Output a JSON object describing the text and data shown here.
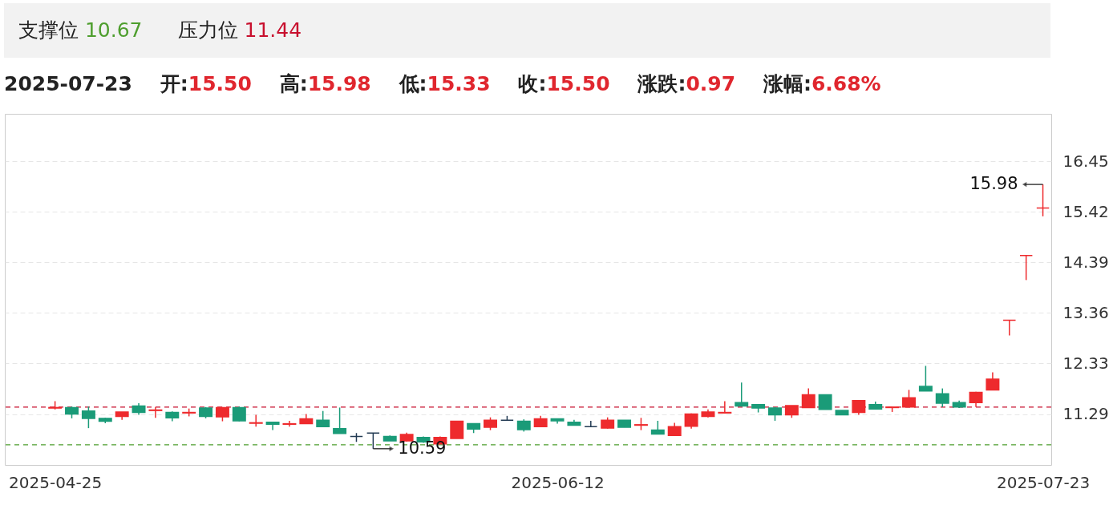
{
  "chart_data": {
    "type": "candlestick",
    "subtitle": "2025-07-23    开:15.50    高:15.98    低:15.33    收:15.50    涨跌:0.97    涨幅:6.68%",
    "categories": [
      "2025-04-25",
      null,
      null,
      null,
      null,
      null,
      null,
      null,
      null,
      null,
      null,
      null,
      null,
      null,
      null,
      null,
      null,
      null,
      null,
      null,
      null,
      null,
      null,
      null,
      null,
      null,
      null,
      null,
      null,
      null,
      "2025-06-12",
      null,
      null,
      null,
      null,
      null,
      null,
      null,
      null,
      null,
      null,
      null,
      null,
      null,
      null,
      null,
      null,
      null,
      null,
      null,
      null,
      null,
      null,
      null,
      null,
      null,
      null,
      null,
      null,
      "2025-07-23"
    ],
    "ohlc": [
      [
        11.42,
        11.56,
        11.39,
        11.43
      ],
      [
        11.43,
        11.45,
        11.21,
        11.3
      ],
      [
        11.36,
        11.45,
        11.01,
        11.21
      ],
      [
        11.21,
        11.22,
        11.11,
        11.15
      ],
      [
        11.25,
        11.34,
        11.18,
        11.34
      ],
      [
        11.46,
        11.52,
        11.28,
        11.33
      ],
      [
        11.37,
        11.44,
        11.22,
        11.38
      ],
      [
        11.33,
        11.35,
        11.15,
        11.22
      ],
      [
        11.32,
        11.41,
        11.25,
        11.33
      ],
      [
        11.42,
        11.44,
        11.21,
        11.25
      ],
      [
        11.24,
        11.44,
        11.15,
        11.43
      ],
      [
        11.43,
        11.45,
        11.15,
        11.16
      ],
      [
        11.11,
        11.28,
        11.04,
        11.12
      ],
      [
        11.13,
        11.13,
        10.97,
        11.09
      ],
      [
        11.09,
        11.16,
        11.04,
        11.1
      ],
      [
        11.1,
        11.3,
        11.1,
        11.2
      ],
      [
        11.17,
        11.36,
        11.04,
        11.04
      ],
      [
        11.0,
        11.43,
        10.9,
        10.9
      ],
      [
        10.84,
        10.91,
        10.73,
        10.84
      ],
      [
        10.91,
        10.91,
        10.59,
        10.91
      ],
      [
        10.84,
        10.86,
        10.75,
        10.75
      ],
      [
        10.75,
        10.92,
        10.74,
        10.88
      ],
      [
        10.82,
        10.84,
        10.71,
        10.73
      ],
      [
        10.69,
        10.84,
        10.68,
        10.82
      ],
      [
        10.8,
        11.16,
        10.8,
        11.15
      ],
      [
        11.1,
        11.1,
        10.91,
        10.99
      ],
      [
        11.03,
        11.23,
        10.97,
        11.17
      ],
      [
        11.17,
        11.26,
        11.17,
        11.17
      ],
      [
        11.15,
        11.19,
        10.94,
        10.98
      ],
      [
        11.04,
        11.26,
        11.03,
        11.2
      ],
      [
        11.2,
        11.21,
        11.1,
        11.16
      ],
      [
        11.13,
        11.18,
        11.06,
        11.07
      ],
      [
        11.04,
        11.16,
        11.04,
        11.04
      ],
      [
        11.01,
        11.23,
        11.0,
        11.17
      ],
      [
        11.17,
        11.17,
        11.03,
        11.03
      ],
      [
        11.07,
        11.22,
        10.97,
        11.08
      ],
      [
        10.97,
        11.16,
        10.89,
        10.89
      ],
      [
        10.86,
        11.12,
        10.86,
        11.04
      ],
      [
        11.05,
        11.31,
        11.0,
        11.3
      ],
      [
        11.25,
        11.39,
        11.23,
        11.34
      ],
      [
        11.32,
        11.56,
        11.32,
        11.33
      ],
      [
        11.53,
        11.94,
        11.45,
        11.46
      ],
      [
        11.49,
        11.5,
        11.33,
        11.42
      ],
      [
        11.42,
        11.44,
        11.16,
        11.28
      ],
      [
        11.28,
        11.47,
        11.22,
        11.47
      ],
      [
        11.43,
        11.82,
        11.43,
        11.69
      ],
      [
        11.69,
        11.69,
        11.39,
        11.39
      ],
      [
        11.37,
        11.37,
        11.28,
        11.28
      ],
      [
        11.33,
        11.57,
        11.28,
        11.57
      ],
      [
        11.49,
        11.55,
        11.4,
        11.4
      ],
      [
        11.43,
        11.44,
        11.34,
        11.44
      ],
      [
        11.44,
        11.79,
        11.44,
        11.63
      ],
      [
        11.86,
        12.28,
        11.77,
        11.77
      ],
      [
        11.71,
        11.82,
        11.44,
        11.52
      ],
      [
        11.53,
        11.57,
        11.42,
        11.44
      ],
      [
        11.53,
        11.75,
        11.44,
        11.74
      ],
      [
        11.79,
        12.15,
        11.78,
        12.01
      ],
      [
        13.21,
        13.21,
        12.9,
        13.21
      ],
      [
        14.53,
        14.53,
        14.03,
        14.53
      ],
      [
        15.5,
        15.98,
        15.33,
        15.5
      ]
    ],
    "colors": [
      "#ee2a2d",
      "#1a9b78",
      "#1a9b78",
      "#1a9b78",
      "#ee2a2d",
      "#1a9b78",
      "#ee2a2d",
      "#1a9b78",
      "#ee2a2d",
      "#1a9b78",
      "#ee2a2d",
      "#1a9b78",
      "#ee2a2d",
      "#1a9b78",
      "#ee2a2d",
      "#ee2a2d",
      "#1a9b78",
      "#1a9b78",
      "#233b53",
      "#233b53",
      "#1a9b78",
      "#ee2a2d",
      "#1a9b78",
      "#ee2a2d",
      "#ee2a2d",
      "#1a9b78",
      "#ee2a2d",
      "#233b53",
      "#1a9b78",
      "#ee2a2d",
      "#1a9b78",
      "#1a9b78",
      "#233b53",
      "#ee2a2d",
      "#1a9b78",
      "#ee2a2d",
      "#1a9b78",
      "#ee2a2d",
      "#ee2a2d",
      "#ee2a2d",
      "#ee2a2d",
      "#1a9b78",
      "#1a9b78",
      "#1a9b78",
      "#ee2a2d",
      "#ee2a2d",
      "#1a9b78",
      "#1a9b78",
      "#ee2a2d",
      "#1a9b78",
      "#ee2a2d",
      "#ee2a2d",
      "#1a9b78",
      "#1a9b78",
      "#1a9b78",
      "#ee2a2d",
      "#ee2a2d",
      "#ee2a2d",
      "#ee2a2d",
      "#ee2a2d"
    ],
    "ylim": [
      10.26,
      17.42
    ],
    "yticks": [
      11.29,
      12.33,
      13.36,
      14.39,
      15.42,
      16.45
    ],
    "grid": "y",
    "ref_lines": [
      {
        "axis": "y",
        "value": 10.67,
        "color": "#4e9e2e",
        "line_style": "dashed"
      },
      {
        "axis": "y",
        "value": 11.44,
        "color": "#c8102e",
        "line_style": "dashed"
      }
    ],
    "annotations": [
      "支撑位 10.67",
      "压力位 11.44",
      "15.98",
      "10.59"
    ]
  }
}
